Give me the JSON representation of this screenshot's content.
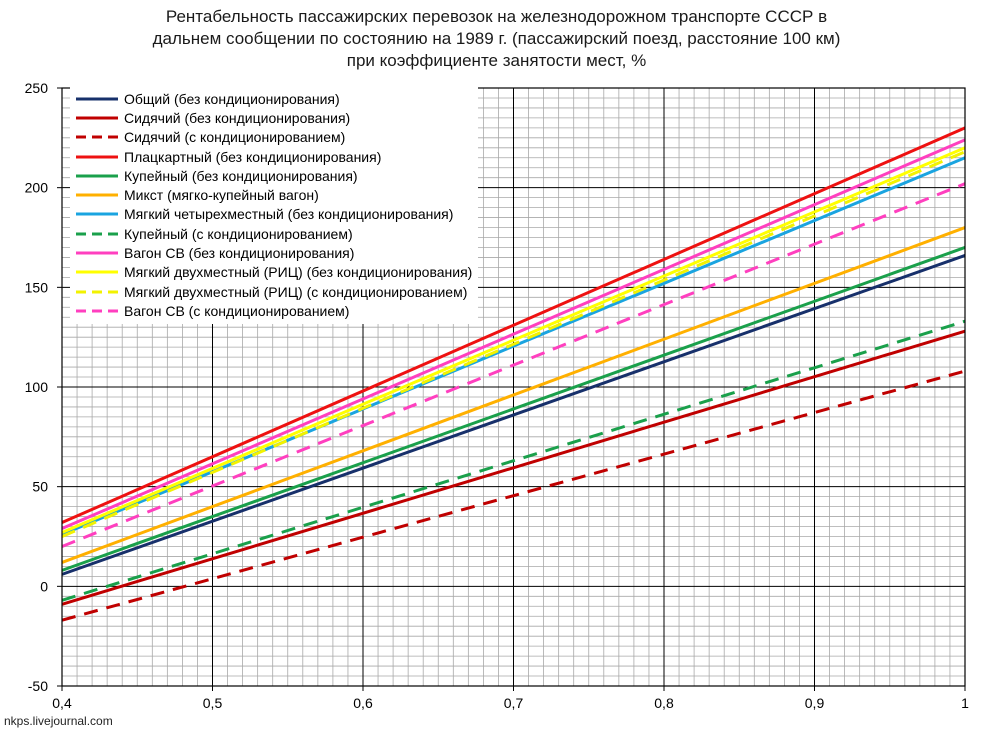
{
  "chart_data": {
    "type": "line",
    "title": [
      "Рентабельность пассажирских перевозок на железнодорожном транспорте СССР в",
      "дальнем сообщении по состоянию на 1989 г. (пассажирский поезд, расстояние 100 км)",
      "при коэффициенте занятости мест, %"
    ],
    "xlim": [
      0.4,
      1.0
    ],
    "ylim": [
      -50,
      250
    ],
    "x_ticks": [
      "0,4",
      "0,5",
      "0,6",
      "0,7",
      "0,8",
      "0,9",
      "1"
    ],
    "x_tick_values": [
      0.4,
      0.5,
      0.6,
      0.7,
      0.8,
      0.9,
      1.0
    ],
    "y_ticks": [
      "-50",
      "0",
      "50",
      "100",
      "150",
      "200",
      "250"
    ],
    "y_tick_values": [
      -50,
      0,
      50,
      100,
      150,
      200,
      250
    ],
    "grid": true,
    "legend_position": "top-left",
    "series": [
      {
        "name": "Общий (без кондиционирования)",
        "color": "#17306b",
        "dash": "solid",
        "x": [
          0.4,
          1.0
        ],
        "values": [
          6,
          166
        ]
      },
      {
        "name": "Сидячий (без кондиционирования)",
        "color": "#c00000",
        "dash": "solid",
        "x": [
          0.4,
          1.0
        ],
        "values": [
          -9,
          128
        ]
      },
      {
        "name": "Сидячий (с кондиционированием)",
        "color": "#c00000",
        "dash": "dashed",
        "x": [
          0.4,
          1.0
        ],
        "values": [
          -17,
          108
        ]
      },
      {
        "name": "Плацкартный (без кондиционирования)",
        "color": "#ee1111",
        "dash": "solid",
        "x": [
          0.4,
          1.0
        ],
        "values": [
          32,
          230
        ]
      },
      {
        "name": "Купейный (без кондиционирования)",
        "color": "#1aa04b",
        "dash": "solid",
        "x": [
          0.4,
          1.0
        ],
        "values": [
          8,
          170
        ]
      },
      {
        "name": "Микст (мягко-купейный  вагон)",
        "color": "#ffb000",
        "dash": "solid",
        "x": [
          0.4,
          1.0
        ],
        "values": [
          12,
          180
        ]
      },
      {
        "name": "Мягкий четырехместный  (без кондиционирования)",
        "color": "#1aa4e0",
        "dash": "solid",
        "x": [
          0.4,
          1.0
        ],
        "values": [
          26,
          215
        ]
      },
      {
        "name": "Купейный (с кондиционированием)",
        "color": "#1aa04b",
        "dash": "dashed",
        "x": [
          0.4,
          1.0
        ],
        "values": [
          -7,
          133
        ]
      },
      {
        "name": "Вагон СВ (без кондиционирования)",
        "color": "#ff3fbf",
        "dash": "solid",
        "x": [
          0.4,
          1.0
        ],
        "values": [
          29,
          224
        ]
      },
      {
        "name": "Мягкий двухместный  (РИЦ) (без кондиционирования)",
        "color": "#ffff00",
        "dash": "solid",
        "x": [
          0.4,
          1.0
        ],
        "values": [
          27,
          220
        ]
      },
      {
        "name": "Мягкий двухместный  (РИЦ) (с кондиционированием)",
        "color": "#f2f200",
        "dash": "dashed",
        "x": [
          0.4,
          1.0
        ],
        "values": [
          25,
          218
        ]
      },
      {
        "name": "Вагон СВ (с кондиционированием)",
        "color": "#ff3fbf",
        "dash": "dashed",
        "x": [
          0.4,
          1.0
        ],
        "values": [
          20,
          202
        ]
      }
    ]
  },
  "watermark": "nkps.livejournal.com"
}
